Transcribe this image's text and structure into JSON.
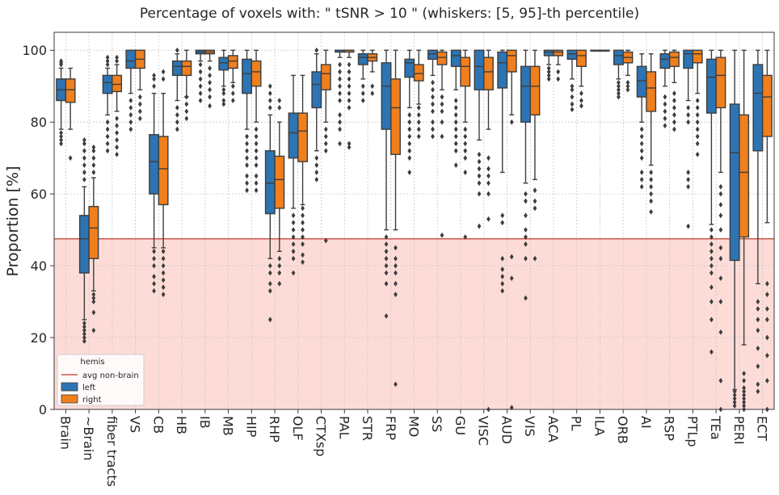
{
  "chart_data": {
    "type": "box",
    "title": "Percentage of voxels with:  \" tSNR  >  10 \"  (whiskers: [5, 95]-th percentile)",
    "xlabel": "",
    "ylabel": "Proportion [%]",
    "ylim": [
      0,
      105
    ],
    "yticks": [
      0,
      20,
      40,
      60,
      80,
      100
    ],
    "grid": true,
    "legend": {
      "title": "hemis",
      "position": "lower-left",
      "entries": [
        {
          "label": "avg non-brain",
          "kind": "line",
          "color": "#c0392b"
        },
        {
          "label": "left",
          "kind": "patch",
          "color": "#2c74b3"
        },
        {
          "label": "right",
          "kind": "patch",
          "color": "#f07f1d"
        }
      ]
    },
    "reference": {
      "label": "avg non-brain",
      "y": 47.5,
      "color": "#c0392b",
      "fill": "#fddcd8"
    },
    "categories": [
      "Brain",
      "~Brain",
      "fiber tracts",
      "VS",
      "CB",
      "HB",
      "IB",
      "MB",
      "HIP",
      "RHP",
      "OLF",
      "CTXsp",
      "PAL",
      "STR",
      "FRP",
      "MO",
      "SS",
      "GU",
      "VISC",
      "AUD",
      "VIS",
      "ACA",
      "PL",
      "ILA",
      "ORB",
      "AI",
      "RSP",
      "PTLp",
      "TEa",
      "PERI",
      "ECT"
    ],
    "series": [
      {
        "name": "left",
        "color": "#2c74b3",
        "boxes": [
          {
            "q1": 86,
            "med": 89,
            "q3": 92,
            "lo": 78,
            "hi": 95,
            "out": [
              96,
              96.5,
              97,
              74,
              75,
              76,
              77
            ]
          },
          {
            "q1": 38,
            "med": 47.5,
            "q3": 54,
            "lo": 25,
            "hi": 62,
            "out": [
              19,
              20,
              21,
              22,
              23,
              24,
              64,
              66,
              68,
              70,
              72,
              74,
              75
            ]
          },
          {
            "q1": 88,
            "med": 91,
            "q3": 93,
            "lo": 82,
            "hi": 95,
            "out": [
              96,
              97,
              98,
              72,
              74,
              76,
              78,
              80
            ]
          },
          {
            "q1": 95,
            "med": 97,
            "q3": 100,
            "lo": 88,
            "hi": 100,
            "out": [
              78,
              80,
              82,
              84,
              86
            ]
          },
          {
            "q1": 60,
            "med": 69,
            "q3": 76.5,
            "lo": 45,
            "hi": 88,
            "out": [
              33,
              35,
              37,
              40,
              42,
              44,
              90,
              92,
              93
            ]
          },
          {
            "q1": 93,
            "med": 95.5,
            "q3": 97,
            "lo": 86,
            "hi": 99,
            "out": [
              78,
              80,
              82,
              84,
              100
            ]
          },
          {
            "q1": 99,
            "med": 99.5,
            "q3": 100,
            "lo": 97,
            "hi": 100,
            "out": [
              86,
              88,
              90,
              92,
              94,
              96
            ]
          },
          {
            "q1": 94.5,
            "med": 96.5,
            "q3": 98,
            "lo": 90,
            "hi": 100,
            "out": [
              85,
              86,
              88,
              89
            ]
          },
          {
            "q1": 88,
            "med": 93.5,
            "q3": 97.5,
            "lo": 78,
            "hi": 100,
            "out": [
              61,
              63,
              65,
              68,
              70,
              72,
              74,
              76
            ]
          },
          {
            "q1": 54.5,
            "med": 63,
            "q3": 72,
            "lo": 42,
            "hi": 82,
            "out": [
              25,
              33,
              35,
              38,
              40,
              84,
              86,
              88,
              90
            ]
          },
          {
            "q1": 70,
            "med": 77,
            "q3": 82.5,
            "lo": 56,
            "hi": 93,
            "out": [
              38,
              42,
              44,
              46,
              48,
              50,
              52,
              54
            ]
          },
          {
            "q1": 84,
            "med": 90.5,
            "q3": 94,
            "lo": 72,
            "hi": 99,
            "out": [
              64,
              66,
              68,
              70,
              100
            ]
          },
          {
            "q1": 99.5,
            "med": 100,
            "q3": 100,
            "lo": 98,
            "hi": 100,
            "out": [
              74,
              78,
              80,
              82,
              86,
              88,
              90,
              92,
              94,
              96
            ]
          },
          {
            "q1": 96,
            "med": 98,
            "q3": 99,
            "lo": 92,
            "hi": 100,
            "out": [
              86,
              88,
              90
            ]
          },
          {
            "q1": 78,
            "med": 90,
            "q3": 96.5,
            "lo": 50,
            "hi": 100,
            "out": [
              26,
              35,
              38,
              40,
              42,
              44,
              46,
              48
            ]
          },
          {
            "q1": 92.5,
            "med": 96.5,
            "q3": 97.5,
            "lo": 84,
            "hi": 100,
            "out": [
              66,
              70,
              72,
              74,
              76,
              78,
              80,
              82
            ]
          },
          {
            "q1": 97.5,
            "med": 99,
            "q3": 100,
            "lo": 93,
            "hi": 100,
            "out": [
              76,
              78,
              80,
              83,
              85,
              87,
              89,
              91
            ]
          },
          {
            "q1": 95.5,
            "med": 98.5,
            "q3": 100,
            "lo": 89,
            "hi": 100,
            "out": [
              68,
              72,
              74,
              76,
              78,
              80,
              82,
              84,
              86
            ]
          },
          {
            "q1": 89,
            "med": 95.5,
            "q3": 100,
            "lo": 75,
            "hi": 100,
            "out": [
              51,
              60,
              63,
              65,
              67,
              69,
              71
            ]
          },
          {
            "q1": 89.5,
            "med": 96.5,
            "q3": 99.5,
            "lo": 66,
            "hi": 100,
            "out": [
              33,
              35,
              37,
              39,
              42,
              52,
              54
            ]
          },
          {
            "q1": 80,
            "med": 90,
            "q3": 95.5,
            "lo": 63,
            "hi": 100,
            "out": [
              31,
              42,
              46,
              48,
              50,
              54,
              58,
              60
            ]
          },
          {
            "q1": 98.5,
            "med": 99.5,
            "q3": 100,
            "lo": 96,
            "hi": 100,
            "out": [
              92,
              93,
              94,
              95
            ]
          },
          {
            "q1": 97.5,
            "med": 99,
            "q3": 100,
            "lo": 92,
            "hi": 100,
            "out": [
              83.5,
              85,
              87,
              89,
              90
            ]
          },
          {
            "q1": 100,
            "med": 100,
            "q3": 100,
            "lo": 100,
            "hi": 100,
            "out": []
          },
          {
            "q1": 96,
            "med": 98.5,
            "q3": 100,
            "lo": 92,
            "hi": 100,
            "out": [
              87,
              88,
              89,
              90,
              91
            ]
          },
          {
            "q1": 87,
            "med": 91.5,
            "q3": 95.5,
            "lo": 80,
            "hi": 99,
            "out": [
              62,
              64,
              66,
              70,
              72,
              74,
              76,
              78
            ]
          },
          {
            "q1": 95,
            "med": 97.5,
            "q3": 99,
            "lo": 90,
            "hi": 100,
            "out": [
              79,
              81,
              83,
              85,
              87
            ]
          },
          {
            "q1": 95,
            "med": 99,
            "q3": 100,
            "lo": 86,
            "hi": 100,
            "out": [
              51,
              62,
              64,
              66,
              80,
              82,
              84
            ]
          },
          {
            "q1": 82.5,
            "med": 92.5,
            "q3": 97.5,
            "lo": 51.5,
            "hi": 100,
            "out": [
              16,
              25,
              30,
              34,
              38,
              40,
              42,
              44,
              46,
              48,
              50
            ]
          },
          {
            "q1": 41.5,
            "med": 71.5,
            "q3": 85,
            "lo": 5.5,
            "hi": 100,
            "out": [
              1,
              2,
              3,
              4,
              5
            ]
          },
          {
            "q1": 72,
            "med": 88,
            "q3": 96,
            "lo": 35,
            "hi": 100,
            "out": [
              5,
              7,
              12,
              17,
              22,
              25,
              28,
              30
            ]
          }
        ]
      },
      {
        "name": "right",
        "color": "#f07f1d",
        "boxes": [
          {
            "q1": 85.5,
            "med": 89,
            "q3": 92,
            "lo": 78,
            "hi": 95,
            "out": [
              70
            ]
          },
          {
            "q1": 42,
            "med": 50.5,
            "q3": 56.5,
            "lo": 33,
            "hi": 64.5,
            "out": [
              22,
              27,
              30,
              31,
              32,
              66,
              68,
              70,
              72,
              73
            ]
          },
          {
            "q1": 88.5,
            "med": 90.5,
            "q3": 93,
            "lo": 83,
            "hi": 96,
            "out": [
              97,
              98,
              71,
              73,
              75,
              77,
              79,
              81
            ]
          },
          {
            "q1": 95,
            "med": 97.5,
            "q3": 100,
            "lo": 89,
            "hi": 100,
            "out": [
              81,
              83,
              85,
              87
            ]
          },
          {
            "q1": 57,
            "med": 67,
            "q3": 76,
            "lo": 45,
            "hi": 88,
            "out": [
              32,
              34,
              36,
              38,
              40,
              42,
              44,
              92,
              94
            ]
          },
          {
            "q1": 93,
            "med": 95.5,
            "q3": 97,
            "lo": 87,
            "hi": 100,
            "out": [
              81,
              83,
              85,
              87
            ]
          },
          {
            "q1": 99,
            "med": 99.5,
            "q3": 100,
            "lo": 97,
            "hi": 100,
            "out": [
              84.5,
              87,
              89,
              91,
              93,
              95
            ]
          },
          {
            "q1": 95,
            "med": 97,
            "q3": 98.5,
            "lo": 91,
            "hi": 100,
            "out": [
              86,
              88,
              90
            ]
          },
          {
            "q1": 90,
            "med": 94,
            "q3": 97,
            "lo": 80,
            "hi": 100,
            "out": [
              61,
              63,
              65,
              68,
              70,
              72,
              74,
              76,
              78
            ]
          },
          {
            "q1": 56,
            "med": 64,
            "q3": 70.5,
            "lo": 44,
            "hi": 80,
            "out": [
              35,
              38,
              40,
              42,
              84,
              86
            ]
          },
          {
            "q1": 69,
            "med": 77.5,
            "q3": 82.5,
            "lo": 57,
            "hi": 93,
            "out": [
              41,
              43,
              46,
              48,
              50,
              52,
              54,
              56
            ]
          },
          {
            "q1": 89,
            "med": 93.5,
            "q3": 96,
            "lo": 80,
            "hi": 100,
            "out": [
              47,
              72,
              74,
              76,
              78
            ]
          },
          {
            "q1": 99.5,
            "med": 100,
            "q3": 100,
            "lo": 98,
            "hi": 100,
            "out": [
              73,
              74,
              84,
              86,
              88,
              90,
              92,
              94,
              96
            ]
          },
          {
            "q1": 97,
            "med": 98,
            "q3": 99,
            "lo": 94,
            "hi": 100,
            "out": [
              88,
              90
            ]
          },
          {
            "q1": 71,
            "med": 84,
            "q3": 92,
            "lo": 50,
            "hi": 100,
            "out": [
              7,
              32,
              35,
              38,
              40,
              42,
              45
            ]
          },
          {
            "q1": 91.5,
            "med": 93.5,
            "q3": 96,
            "lo": 85,
            "hi": 100,
            "out": [
              76,
              78,
              80,
              82,
              84
            ]
          },
          {
            "q1": 96,
            "med": 98,
            "q3": 99.5,
            "lo": 89,
            "hi": 100,
            "out": [
              48.5,
              76,
              80,
              83,
              85,
              87
            ]
          },
          {
            "q1": 90,
            "med": 95.5,
            "q3": 98,
            "lo": 80,
            "hi": 100,
            "out": [
              48,
              66,
              70,
              72,
              74,
              76,
              78
            ]
          },
          {
            "q1": 89,
            "med": 94,
            "q3": 98,
            "lo": 78,
            "hi": 100,
            "out": [
              0,
              53,
              60,
              63,
              65,
              67,
              70
            ]
          },
          {
            "q1": 94,
            "med": 98.5,
            "q3": 100,
            "lo": 82,
            "hi": 100,
            "out": [
              0.5,
              36.5,
              42.5,
              80
            ]
          },
          {
            "q1": 82,
            "med": 90,
            "q3": 95.5,
            "lo": 64,
            "hi": 100,
            "out": [
              42,
              56,
              58,
              61
            ]
          },
          {
            "q1": 98.5,
            "med": 99.5,
            "q3": 100,
            "lo": 96,
            "hi": 100,
            "out": [
              92,
              94
            ]
          },
          {
            "q1": 95.5,
            "med": 98.5,
            "q3": 100,
            "lo": 90,
            "hi": 100,
            "out": [
              84.5,
              86,
              88
            ]
          },
          {
            "q1": 100,
            "med": 100,
            "q3": 100,
            "lo": 100,
            "hi": 100,
            "out": []
          },
          {
            "q1": 96.5,
            "med": 98,
            "q3": 99.5,
            "lo": 93,
            "hi": 100,
            "out": [
              89,
              90,
              91
            ]
          },
          {
            "q1": 83,
            "med": 89.5,
            "q3": 94,
            "lo": 68,
            "hi": 99,
            "out": [
              55,
              58,
              60,
              62,
              64,
              66
            ]
          },
          {
            "q1": 95.5,
            "med": 98,
            "q3": 99.5,
            "lo": 91,
            "hi": 100,
            "out": [
              78,
              80,
              82,
              84,
              86,
              88
            ]
          },
          {
            "q1": 96.5,
            "med": 99,
            "q3": 100,
            "lo": 88,
            "hi": 100,
            "out": [
              71,
              74,
              76,
              78,
              80,
              82,
              84,
              86
            ]
          },
          {
            "q1": 84,
            "med": 93,
            "q3": 98,
            "lo": 66,
            "hi": 100,
            "out": [
              0,
              8,
              21.5,
              30,
              36.5,
              42,
              45,
              50,
              54,
              57,
              60,
              62
            ]
          },
          {
            "q1": 48,
            "med": 66,
            "q3": 82,
            "lo": 18,
            "hi": 100,
            "out": [
              0,
              1,
              2,
              3,
              4,
              5,
              6,
              8,
              10
            ]
          },
          {
            "q1": 76,
            "med": 87,
            "q3": 93,
            "lo": 52,
            "hi": 100,
            "out": [
              0,
              8,
              15,
              20,
              25,
              28,
              32,
              35
            ]
          }
        ]
      }
    ]
  }
}
